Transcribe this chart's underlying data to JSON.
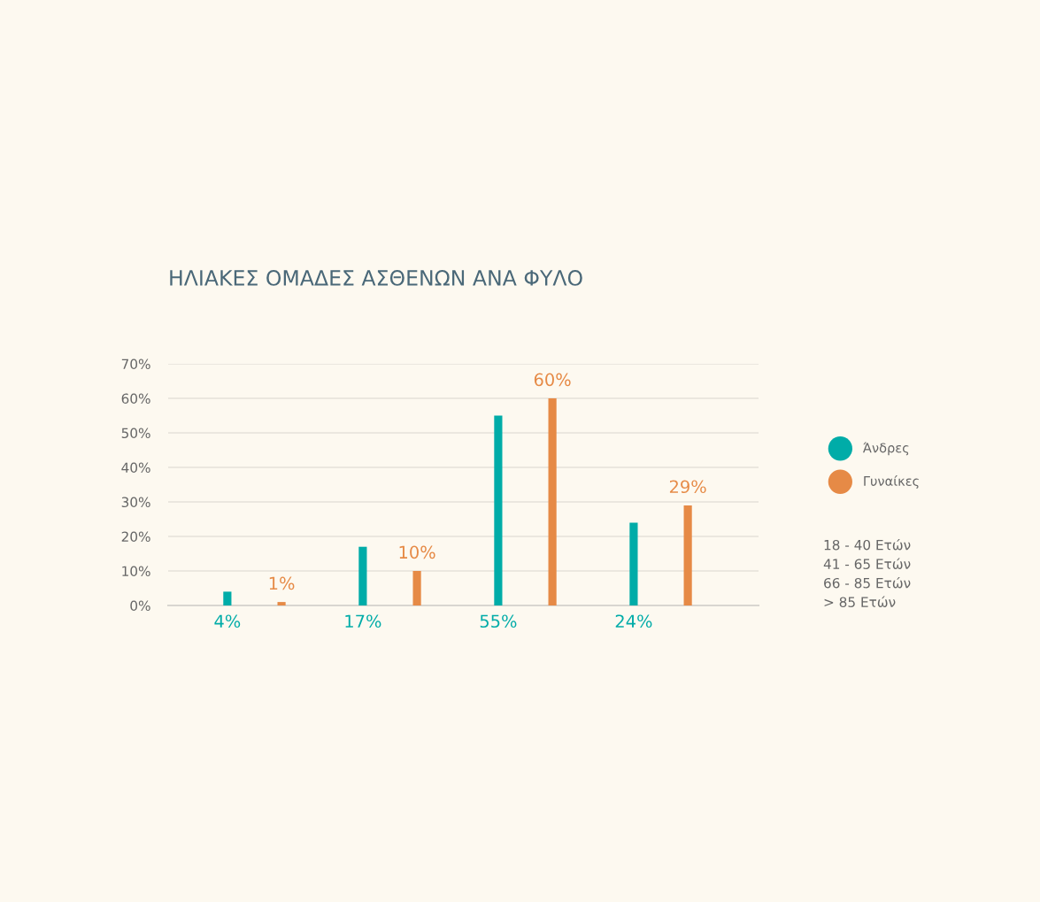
{
  "chart_data": {
    "type": "bar",
    "title": "ΗΛΙΑΚΕΣ ΟΜΑΔΕΣ ΑΣΘΕΝΩΝ ΑΝΑ ΦΥΛΟ",
    "categories": [
      null,
      null,
      null,
      null
    ],
    "series": [
      {
        "name": "Άνδρες",
        "color": "#00aca8",
        "values": [
          4,
          17,
          55,
          24
        ],
        "value_labels": [
          "4%",
          "17%",
          "55%",
          "24%"
        ]
      },
      {
        "name": "Γυναίκες",
        "color": "#e68a46",
        "values": [
          1,
          10,
          60,
          29
        ],
        "value_labels": [
          "1%",
          "10%",
          "60%",
          "29%"
        ]
      }
    ],
    "ylim": [
      0,
      70
    ],
    "yticks": [
      {
        "value": 0,
        "label": "0%"
      },
      {
        "value": 10,
        "label": "10%"
      },
      {
        "value": 20,
        "label": "20%"
      },
      {
        "value": 30,
        "label": "30%"
      },
      {
        "value": 40,
        "label": "40%"
      },
      {
        "value": 50,
        "label": "50%"
      },
      {
        "value": 60,
        "label": "60%"
      },
      {
        "value": 70,
        "label": "70%"
      }
    ],
    "grid": "y",
    "legend": "right",
    "annotations": [
      "18 - 40 Ετών",
      "41 - 65 Ετών",
      "66 - 85 Ετών",
      "> 85 Ετών"
    ]
  }
}
